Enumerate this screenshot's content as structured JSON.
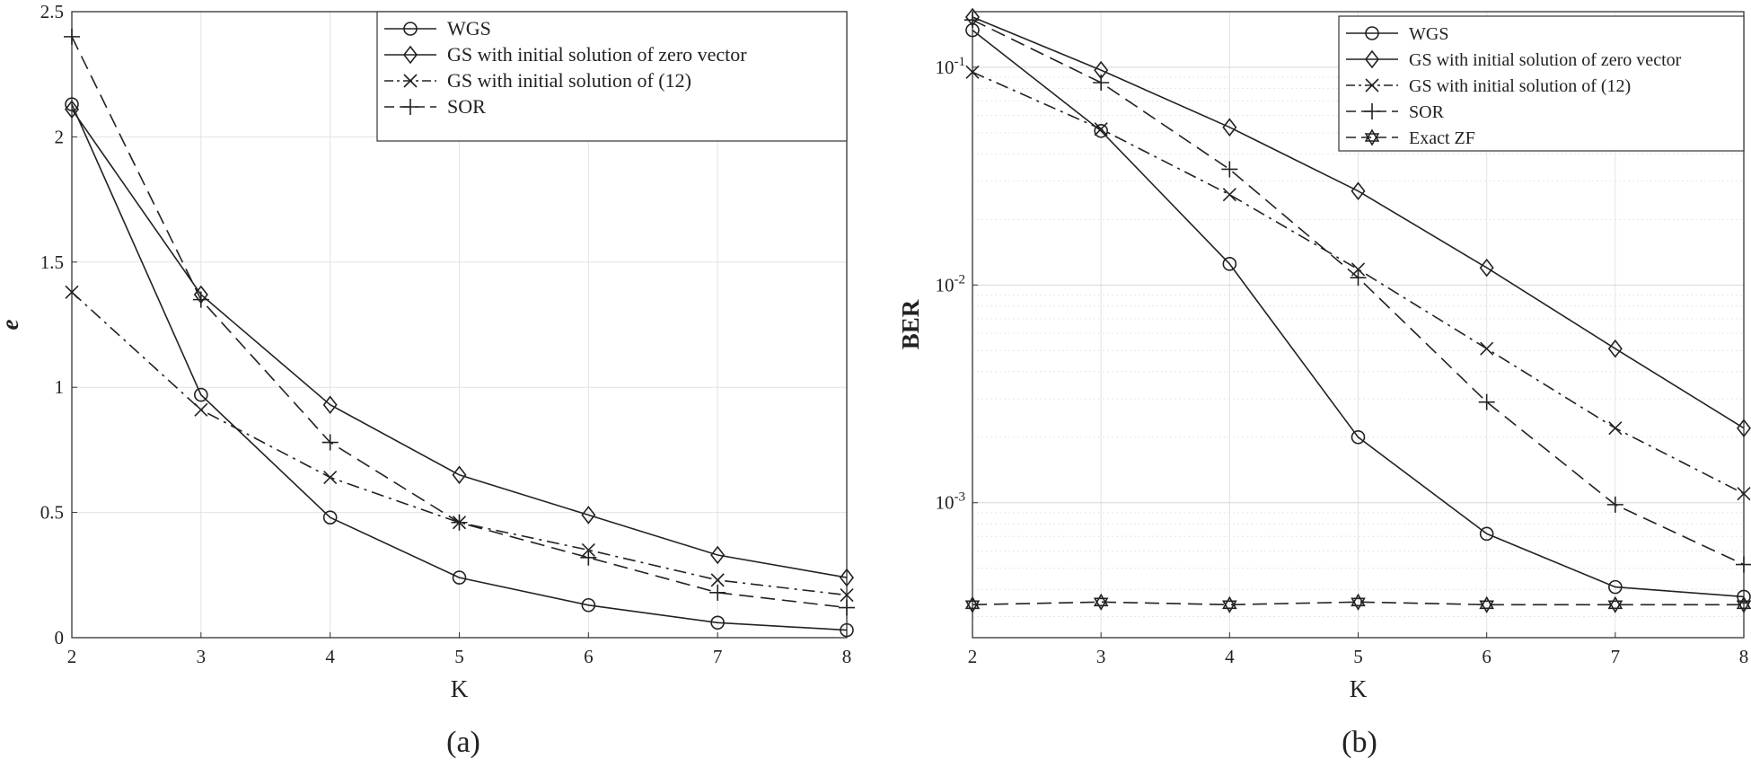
{
  "chart_data": [
    {
      "type": "line",
      "panel_label": "(a)",
      "title": "",
      "xlabel": "K",
      "ylabel": "e",
      "x": [
        2,
        3,
        4,
        5,
        6,
        7,
        8
      ],
      "xlim": [
        2,
        8
      ],
      "ylim": [
        0,
        2.5
      ],
      "yscale": "linear",
      "xticks": [
        "2",
        "3",
        "4",
        "5",
        "6",
        "7",
        "8"
      ],
      "yticks": [
        {
          "value": 0,
          "label": "0"
        },
        {
          "value": 0.5,
          "label": "0.5"
        },
        {
          "value": 1,
          "label": "1"
        },
        {
          "value": 1.5,
          "label": "1.5"
        },
        {
          "value": 2,
          "label": "2"
        },
        {
          "value": 2.5,
          "label": "2.5"
        }
      ],
      "grid": true,
      "legend_position": "top-right",
      "series": [
        {
          "name": "WGS",
          "marker": "circle",
          "dash": "solid",
          "values": [
            2.13,
            0.97,
            0.48,
            0.24,
            0.13,
            0.06,
            0.03
          ]
        },
        {
          "name": "GS with initial solution of zero vector",
          "marker": "diamond",
          "dash": "solid",
          "values": [
            2.11,
            1.37,
            0.93,
            0.65,
            0.49,
            0.33,
            0.24
          ]
        },
        {
          "name": "GS with initial solution of (12)",
          "marker": "x",
          "dash": "dashdot",
          "values": [
            1.38,
            0.91,
            0.64,
            0.46,
            0.35,
            0.23,
            0.17
          ]
        },
        {
          "name": "SOR",
          "marker": "plus",
          "dash": "dashed",
          "values": [
            2.4,
            1.35,
            0.78,
            0.46,
            0.32,
            0.18,
            0.12
          ]
        }
      ]
    },
    {
      "type": "line",
      "panel_label": "(b)",
      "title": "",
      "xlabel": "K",
      "ylabel": "BER",
      "x": [
        2,
        3,
        4,
        5,
        6,
        7,
        8
      ],
      "xlim": [
        2,
        8
      ],
      "ylim": [
        0.00024,
        0.18
      ],
      "yscale": "log",
      "xticks": [
        "2",
        "3",
        "4",
        "5",
        "6",
        "7",
        "8"
      ],
      "yticks": [
        {
          "value": 0.001,
          "base": "10",
          "exp": "-3"
        },
        {
          "value": 0.01,
          "base": "10",
          "exp": "-2"
        },
        {
          "value": 0.1,
          "base": "10",
          "exp": "-1"
        }
      ],
      "grid": true,
      "legend_position": "top-right",
      "series": [
        {
          "name": "WGS",
          "marker": "circle",
          "dash": "solid",
          "values": [
            0.148,
            0.051,
            0.0125,
            0.002,
            0.00072,
            0.00041,
            0.00037
          ]
        },
        {
          "name": "GS with initial solution of zero vector",
          "marker": "diamond",
          "dash": "solid",
          "values": [
            0.17,
            0.097,
            0.053,
            0.027,
            0.012,
            0.0051,
            0.0022
          ]
        },
        {
          "name": "GS with initial solution of (12)",
          "marker": "x",
          "dash": "dashdot",
          "values": [
            0.095,
            0.052,
            0.026,
            0.0118,
            0.0051,
            0.0022,
            0.0011
          ]
        },
        {
          "name": "SOR",
          "marker": "plus",
          "dash": "dashed",
          "values": [
            0.165,
            0.085,
            0.034,
            0.0108,
            0.0029,
            0.00098,
            0.00052
          ]
        },
        {
          "name": "Exact ZF",
          "marker": "hexagram",
          "dash": "dashed",
          "values": [
            0.00034,
            0.00035,
            0.00034,
            0.00035,
            0.00034,
            0.00034,
            0.00034
          ]
        }
      ]
    }
  ]
}
